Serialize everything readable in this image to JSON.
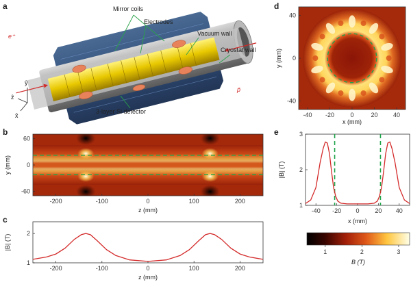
{
  "panels": {
    "a": {
      "letter": "a",
      "labels": {
        "mirror_coils": "Mirror coils",
        "electrodes": "Electrodes",
        "vacuum_wall": "Vacuum wall",
        "cryostat_wall": "Cryostat wall",
        "detector": "3-layer Si detector",
        "e_plus": "e⁺",
        "p_bar": "p̄",
        "axis_y": "ŷ",
        "axis_z": "ẑ",
        "axis_x": "x̂"
      }
    },
    "b": {
      "letter": "b",
      "xlabel": "z (mm)",
      "ylabel": "y (mm)"
    },
    "c": {
      "letter": "c",
      "xlabel": "z (mm)",
      "ylabel": "|B| (T)"
    },
    "d": {
      "letter": "d",
      "xlabel": "x (mm)",
      "ylabel": "y (mm)"
    },
    "e": {
      "letter": "e",
      "xlabel": "x (mm)",
      "ylabel": "|B| (T)"
    },
    "colorbar": {
      "label": "B (T)",
      "ticks": [
        "1",
        "2",
        "3"
      ]
    }
  },
  "chart_data": [
    {
      "id": "b",
      "type": "heatmap",
      "xlabel": "z (mm)",
      "ylabel": "y (mm)",
      "xlim": [
        -250,
        250
      ],
      "ylim": [
        -70,
        70
      ],
      "xticks": [
        -200,
        -100,
        0,
        100,
        200
      ],
      "yticks": [
        -60,
        0,
        60
      ],
      "dashed_lines_y": [
        22,
        -22
      ]
    },
    {
      "id": "c",
      "type": "line",
      "xlabel": "z (mm)",
      "ylabel": "|B| (T)",
      "xlim": [
        -250,
        250
      ],
      "ylim": [
        1,
        2.4
      ],
      "xticks": [
        -200,
        -100,
        0,
        100,
        200
      ],
      "yticks": [
        1,
        2
      ],
      "series": [
        {
          "x": [
            -250,
            -220,
            -200,
            -180,
            -160,
            -145,
            -135,
            -125,
            -110,
            -90,
            -70,
            -40,
            0,
            40,
            70,
            90,
            110,
            125,
            135,
            145,
            160,
            180,
            200,
            220,
            250
          ],
          "y": [
            1.12,
            1.2,
            1.3,
            1.5,
            1.8,
            1.96,
            2.0,
            1.96,
            1.75,
            1.45,
            1.25,
            1.1,
            1.05,
            1.1,
            1.25,
            1.45,
            1.75,
            1.96,
            2.0,
            1.96,
            1.8,
            1.5,
            1.3,
            1.2,
            1.12
          ]
        }
      ]
    },
    {
      "id": "d",
      "type": "heatmap",
      "xlabel": "x (mm)",
      "ylabel": "y (mm)",
      "xlim": [
        -48,
        48
      ],
      "ylim": [
        -48,
        48
      ],
      "xticks": [
        -40,
        -20,
        0,
        20,
        40
      ],
      "yticks": [
        -40,
        0,
        40
      ],
      "dashed_circle_radius": 22,
      "coil_count": 10
    },
    {
      "id": "e",
      "type": "line",
      "xlabel": "x (mm)",
      "ylabel": "|B| (T)",
      "xlim": [
        -50,
        50
      ],
      "ylim": [
        1,
        3
      ],
      "xticks": [
        -40,
        -20,
        0,
        20,
        40
      ],
      "yticks": [
        1,
        2,
        3
      ],
      "dashed_lines_x": [
        -22,
        22
      ],
      "series": [
        {
          "x": [
            -50,
            -45,
            -40,
            -36,
            -33,
            -31,
            -29,
            -27,
            -25,
            -23,
            -21,
            -19,
            -16,
            -10,
            0,
            10,
            16,
            19,
            21,
            23,
            25,
            27,
            29,
            31,
            33,
            36,
            40,
            45,
            50
          ],
          "y": [
            1.05,
            1.15,
            1.5,
            2.2,
            2.6,
            2.78,
            2.75,
            2.45,
            1.95,
            1.5,
            1.25,
            1.12,
            1.06,
            1.04,
            1.04,
            1.04,
            1.06,
            1.12,
            1.25,
            1.5,
            1.95,
            2.45,
            2.75,
            2.78,
            2.6,
            2.2,
            1.5,
            1.15,
            1.05
          ]
        }
      ]
    }
  ]
}
